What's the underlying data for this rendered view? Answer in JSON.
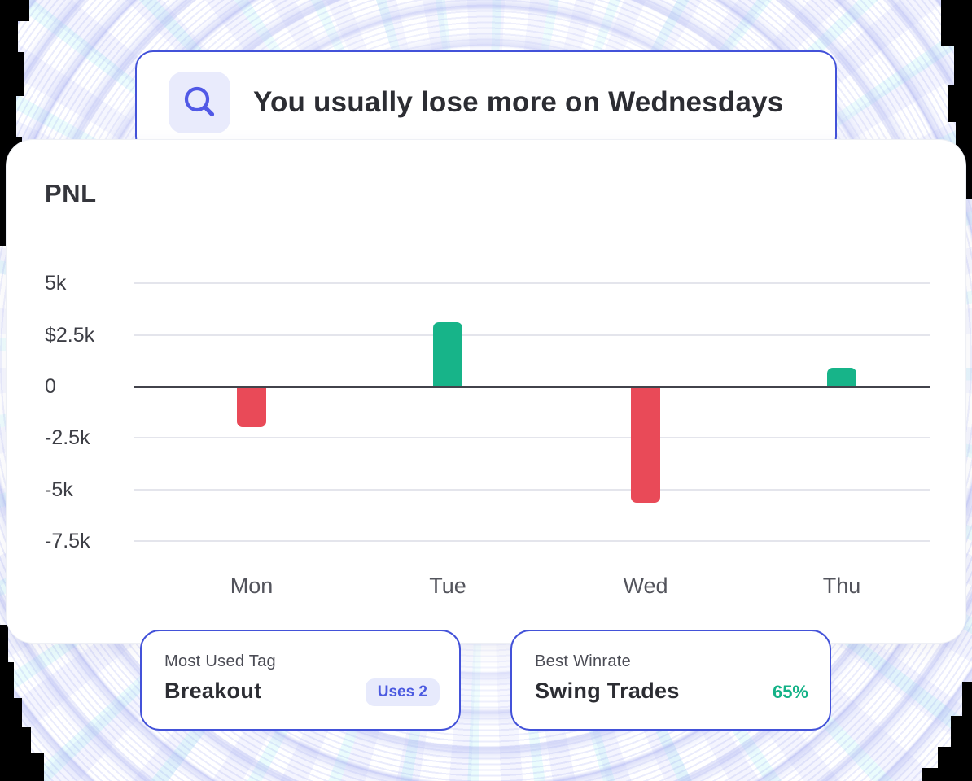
{
  "insight_banner": {
    "text": "You usually lose more on Wednesdays",
    "icon": "search-icon"
  },
  "pnl_card": {
    "title": "PNL"
  },
  "chart_data": {
    "type": "bar",
    "title": "PNL",
    "categories": [
      "Mon",
      "Tue",
      "Wed",
      "Thu"
    ],
    "values": [
      -1900,
      3100,
      -5600,
      900
    ],
    "y_ticks": [
      {
        "label": "5k",
        "value": 5000
      },
      {
        "label": "$2.5k",
        "value": 2500
      },
      {
        "label": "0",
        "value": 0
      },
      {
        "label": "-2.5k",
        "value": -2500
      },
      {
        "label": "-5k",
        "value": -5000
      },
      {
        "label": "-7.5k",
        "value": -7500
      }
    ],
    "ylim": [
      -7500,
      5000
    ],
    "xlabel": "",
    "ylabel": "",
    "grid": true,
    "legend": false,
    "colors": {
      "positive": "#17b489",
      "negative": "#e94a58"
    }
  },
  "stat_cards": [
    {
      "label": "Most Used Tag",
      "value": "Breakout",
      "badge": "Uses 2"
    },
    {
      "label": "Best Winrate",
      "value": "Swing Trades",
      "percent": "65%"
    }
  ],
  "colors": {
    "accent_indigo": "#4352d9",
    "icon_indigo": "#5159e6",
    "icon_bg": "#e9ebfc",
    "positive_green": "#17b489",
    "negative_red": "#e94a58",
    "badge_bg": "#e7eafc",
    "badge_text": "#4b5ae0",
    "winrate_green": "#14b287"
  }
}
